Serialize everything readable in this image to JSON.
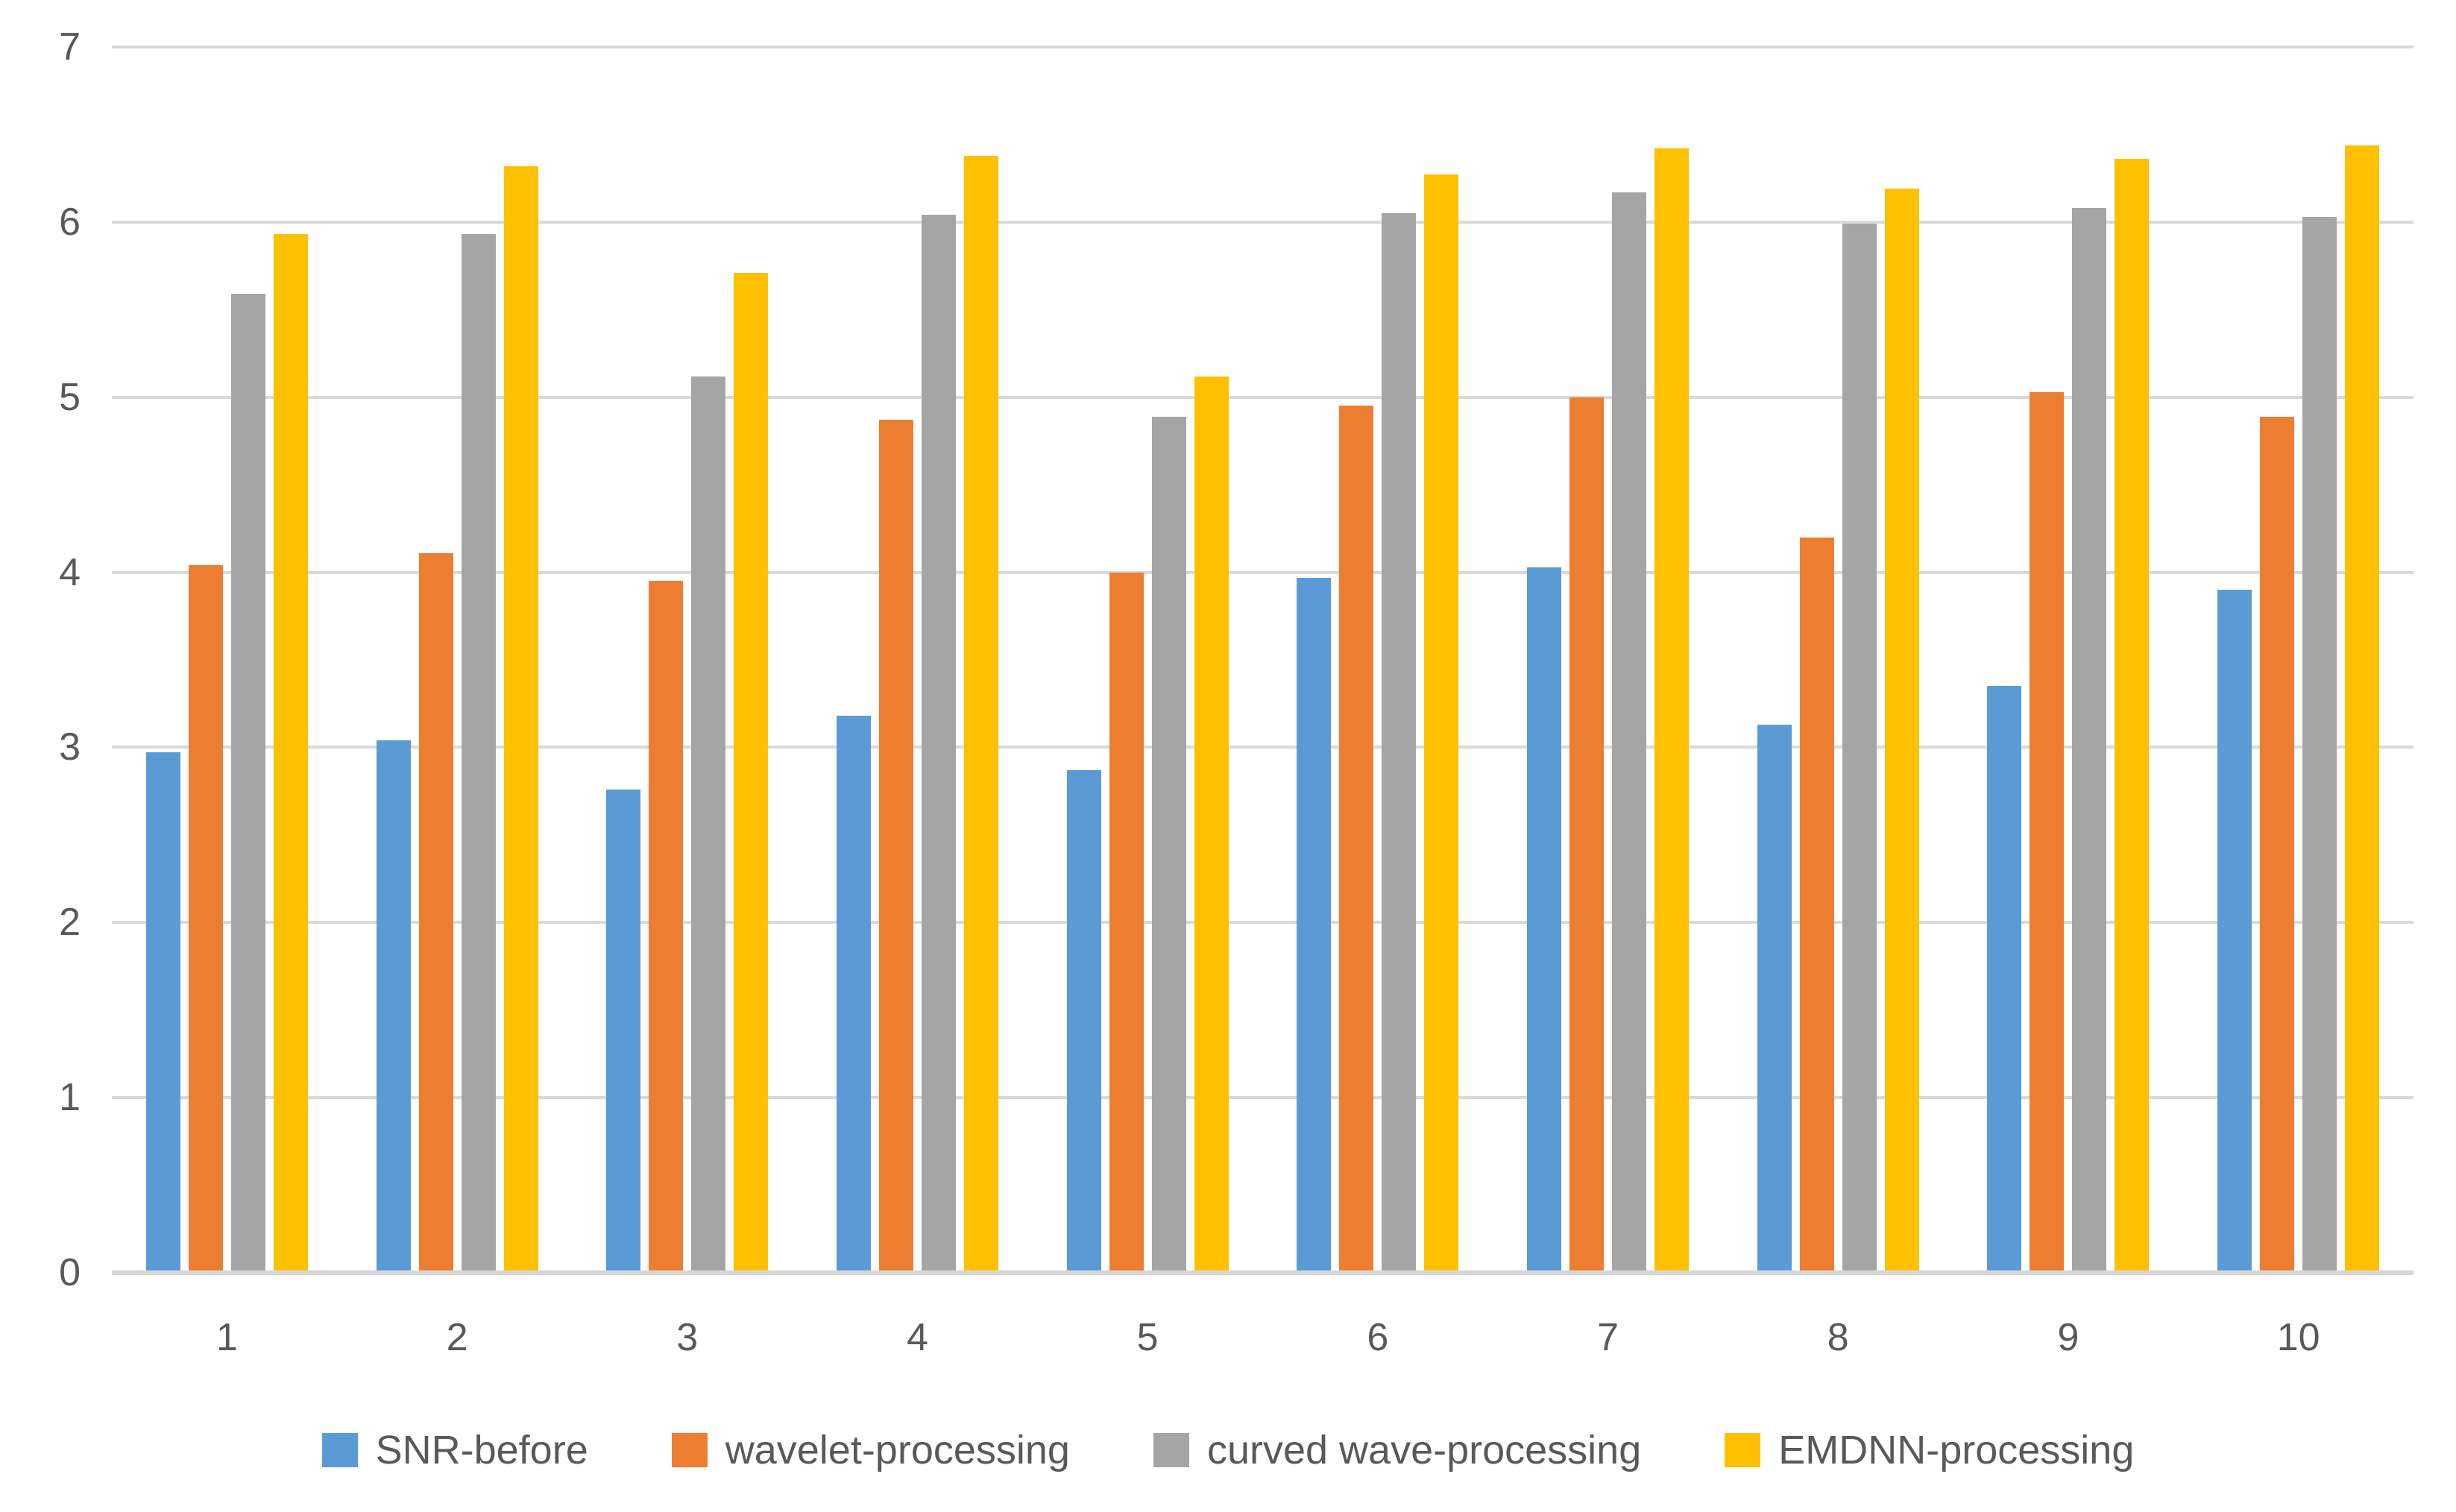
{
  "chart_data": {
    "type": "bar",
    "title": "",
    "xlabel": "",
    "ylabel": "",
    "categories": [
      "1",
      "2",
      "3",
      "4",
      "5",
      "6",
      "7",
      "8",
      "9",
      "10"
    ],
    "series": [
      {
        "name": "SNR-before",
        "color": "#5B9BD5",
        "values": [
          2.97,
          3.04,
          2.76,
          3.18,
          2.87,
          3.97,
          4.03,
          3.13,
          3.35,
          3.9
        ]
      },
      {
        "name": "wavelet-processing",
        "color": "#ED7D31",
        "values": [
          4.04,
          4.11,
          3.95,
          4.87,
          4.0,
          4.95,
          5.0,
          4.2,
          5.03,
          4.89
        ]
      },
      {
        "name": "curved wave-processing",
        "color": "#A5A5A5",
        "values": [
          5.59,
          5.93,
          5.12,
          6.04,
          4.89,
          6.05,
          6.17,
          5.99,
          6.08,
          6.03
        ]
      },
      {
        "name": "EMDNN-processing",
        "color": "#FFC000",
        "values": [
          5.93,
          6.32,
          5.71,
          6.38,
          5.12,
          6.27,
          6.42,
          6.19,
          6.36,
          6.44
        ]
      }
    ],
    "ylim": [
      0,
      7
    ],
    "y_ticks": [
      0,
      1,
      2,
      3,
      4,
      5,
      6,
      7
    ],
    "grid": true,
    "legend_position": "bottom"
  },
  "style": {
    "background": "#ffffff",
    "gridline_color": "#D9D9D9",
    "axis_line_color": "#D6D6D6",
    "tick_label_color": "#595959",
    "legend_label_color": "#595959"
  }
}
